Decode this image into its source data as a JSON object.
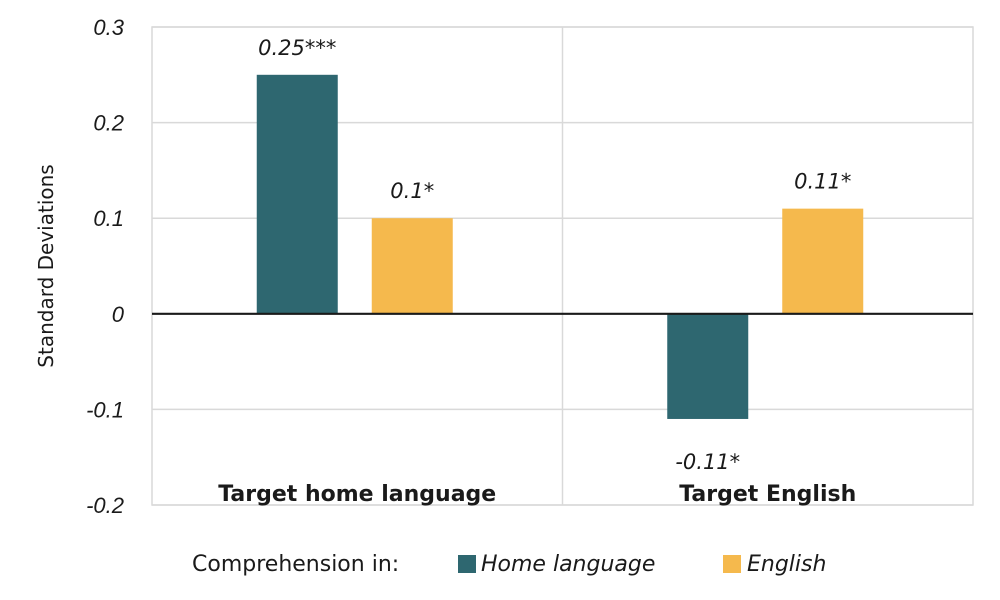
{
  "chart_data": {
    "type": "bar",
    "ylabel": "Standard Deviations",
    "ylim": [
      -0.2,
      0.3
    ],
    "yticks": [
      "0.3",
      "0.2",
      "0.1",
      "0",
      "-0.1",
      "-0.2"
    ],
    "ytick_values": [
      0.3,
      0.2,
      0.1,
      0,
      -0.1,
      -0.2
    ],
    "grid": true,
    "categories": [
      "Target home language",
      "Target English"
    ],
    "series": [
      {
        "name": "Home language",
        "color": "#2e6770",
        "values": [
          0.25,
          -0.11
        ],
        "labels": [
          "0.25***",
          "-0.11*"
        ]
      },
      {
        "name": "English",
        "color": "#f5b94d",
        "values": [
          0.1,
          0.11
        ],
        "labels": [
          "0.1*",
          "0.11*"
        ]
      }
    ],
    "legend": {
      "title": "Comprehension in:",
      "placement": "bottom"
    }
  }
}
